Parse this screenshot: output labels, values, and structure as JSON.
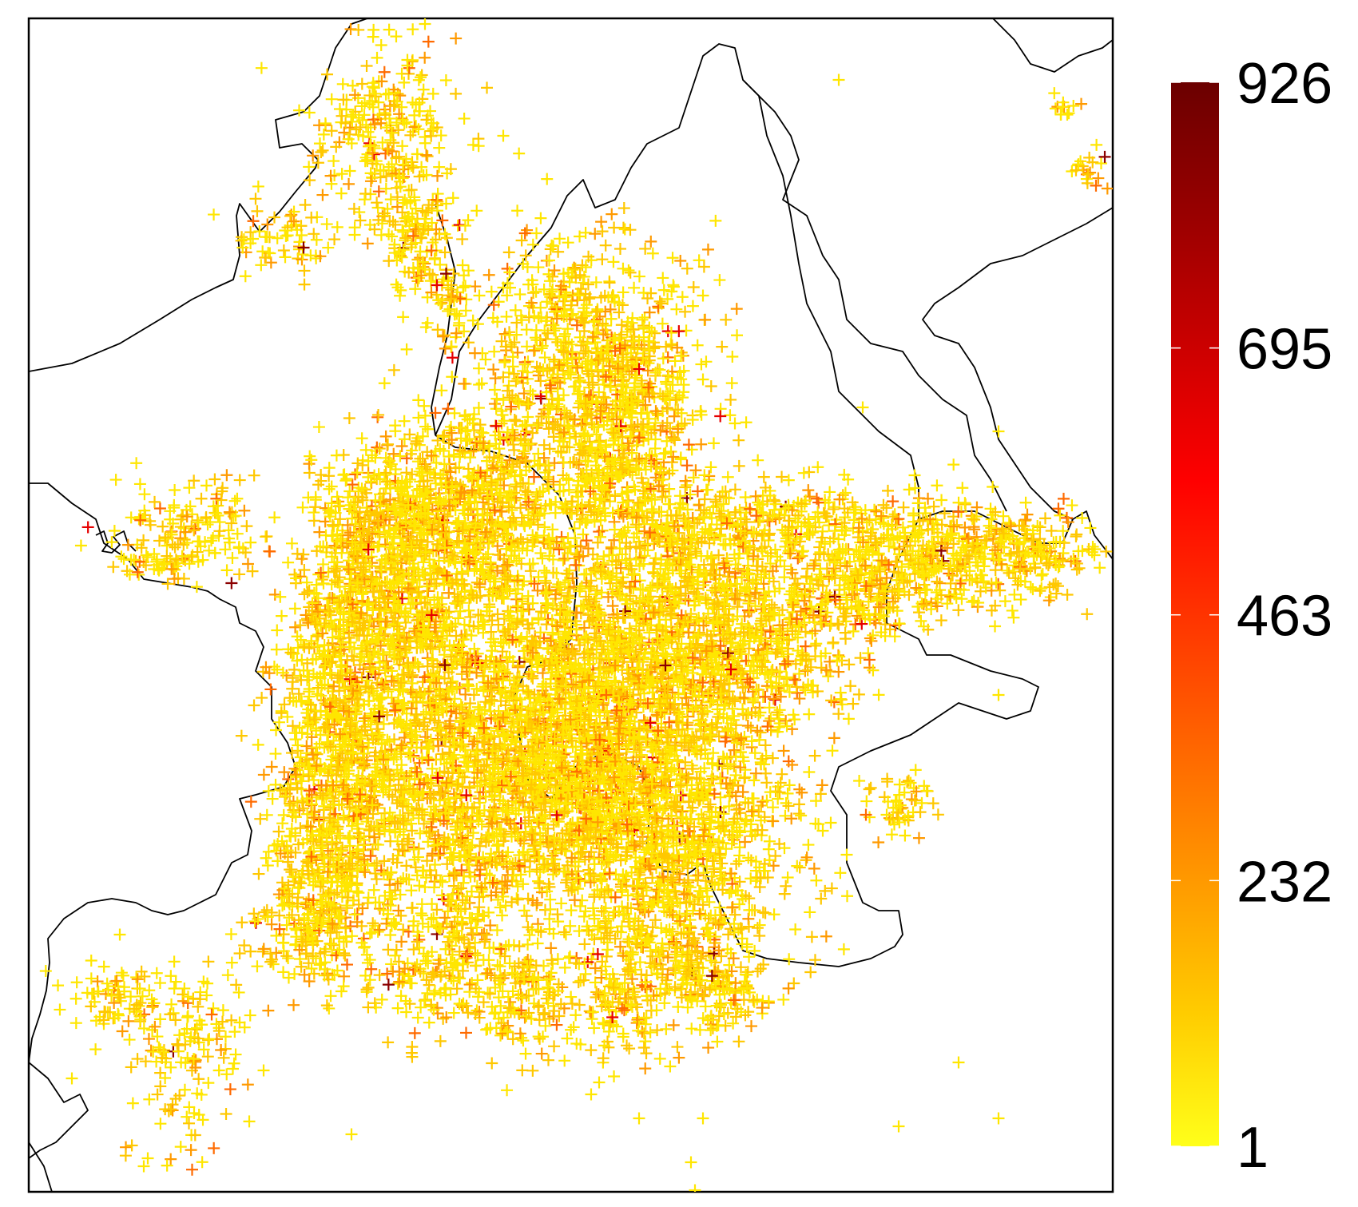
{
  "colorbar": {
    "ticks": [
      {
        "value": 1,
        "label": "1"
      },
      {
        "value": 232,
        "label": "232"
      },
      {
        "value": 463,
        "label": "463"
      },
      {
        "value": 695,
        "label": "695"
      },
      {
        "value": 926,
        "label": "926"
      }
    ],
    "min": 1,
    "max": 926,
    "gradient": [
      "#ffff1a",
      "#ffcc00",
      "#ff9900",
      "#ff6600",
      "#ff3300",
      "#ff0000",
      "#cc0000",
      "#990000",
      "#6b0000"
    ]
  },
  "marker_colors": {
    "low": "#ffe600",
    "mid_low": "#ffc800",
    "mid": "#ff9a00",
    "mid_high": "#ff6a00",
    "high": "#e60000",
    "very_high": "#8b0000"
  },
  "boundary_color": "#000000",
  "marker_symbol": "plus"
}
